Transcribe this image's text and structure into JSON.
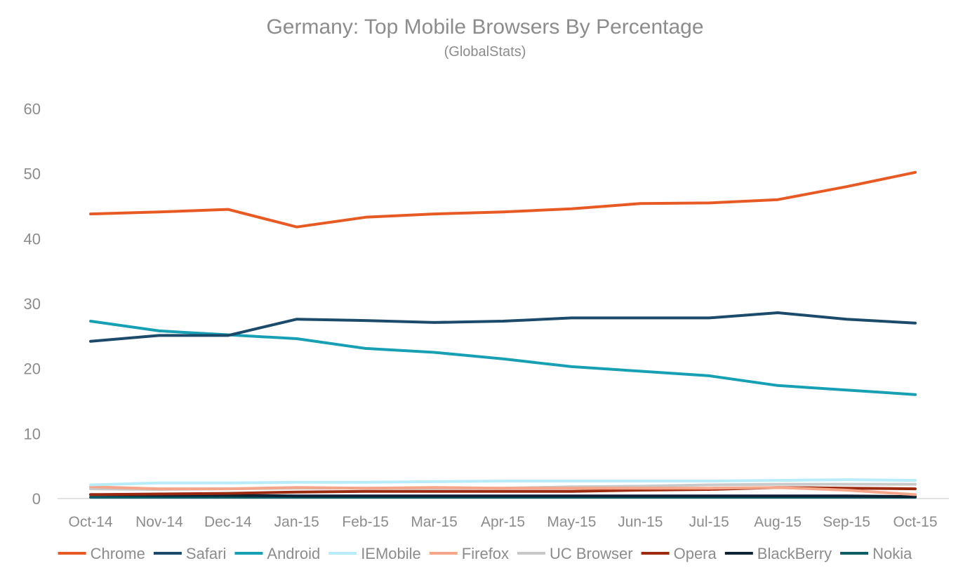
{
  "chart_data": {
    "type": "line",
    "title": "Germany: Top Mobile Browsers By Percentage",
    "subtitle": "(GlobalStats)",
    "xlabel": "",
    "ylabel": "",
    "ylim": [
      0,
      60
    ],
    "yticks": [
      "0",
      "10",
      "20",
      "30",
      "40",
      "50",
      "60"
    ],
    "grid": false,
    "legend_position": "bottom",
    "categories": [
      "Oct-14",
      "Nov-14",
      "Dec-14",
      "Jan-15",
      "Feb-15",
      "Mar-15",
      "Apr-15",
      "May-15",
      "Jun-15",
      "Jul-15",
      "Aug-15",
      "Sep-15",
      "Oct-15"
    ],
    "series": [
      {
        "name": "Chrome",
        "color": "#e85a24",
        "values": [
          43.8,
          44.1,
          44.5,
          41.8,
          43.3,
          43.8,
          44.1,
          44.6,
          45.4,
          45.5,
          46.0,
          48.0,
          50.2
        ]
      },
      {
        "name": "Safari",
        "color": "#1b4a6b",
        "values": [
          24.2,
          25.1,
          25.1,
          27.6,
          27.4,
          27.1,
          27.3,
          27.8,
          27.8,
          27.8,
          28.6,
          27.6,
          27.0
        ]
      },
      {
        "name": "Android",
        "color": "#17a0b4",
        "values": [
          27.3,
          25.8,
          25.2,
          24.6,
          23.1,
          22.5,
          21.5,
          20.3,
          19.6,
          18.9,
          17.4,
          16.7,
          16.0
        ]
      },
      {
        "name": "IEMobile",
        "color": "#b7ecf8",
        "values": [
          2.1,
          2.4,
          2.4,
          2.5,
          2.5,
          2.6,
          2.7,
          2.7,
          2.7,
          2.7,
          2.8,
          2.9,
          2.8
        ]
      },
      {
        "name": "Firefox",
        "color": "#f5a58a",
        "values": [
          1.8,
          1.5,
          1.5,
          1.7,
          1.6,
          1.7,
          1.6,
          1.6,
          1.6,
          1.6,
          1.7,
          1.3,
          0.6
        ]
      },
      {
        "name": "UC Browser",
        "color": "#c9c9c9",
        "values": [
          1.5,
          1.4,
          1.5,
          1.6,
          1.6,
          1.6,
          1.6,
          1.8,
          1.9,
          2.1,
          2.2,
          2.2,
          2.2
        ]
      },
      {
        "name": "Opera",
        "color": "#9c2a10",
        "values": [
          0.6,
          0.7,
          0.8,
          1.0,
          1.1,
          1.1,
          1.1,
          1.1,
          1.3,
          1.4,
          1.7,
          1.6,
          1.5
        ]
      },
      {
        "name": "BlackBerry",
        "color": "#0d2233",
        "values": [
          0.6,
          0.5,
          0.5,
          0.4,
          0.4,
          0.4,
          0.4,
          0.4,
          0.4,
          0.4,
          0.4,
          0.4,
          0.3
        ]
      },
      {
        "name": "Nokia",
        "color": "#0f5e66",
        "values": [
          0.2,
          0.2,
          0.2,
          0.2,
          0.2,
          0.2,
          0.2,
          0.2,
          0.2,
          0.2,
          0.2,
          0.2,
          0.2
        ]
      }
    ]
  }
}
